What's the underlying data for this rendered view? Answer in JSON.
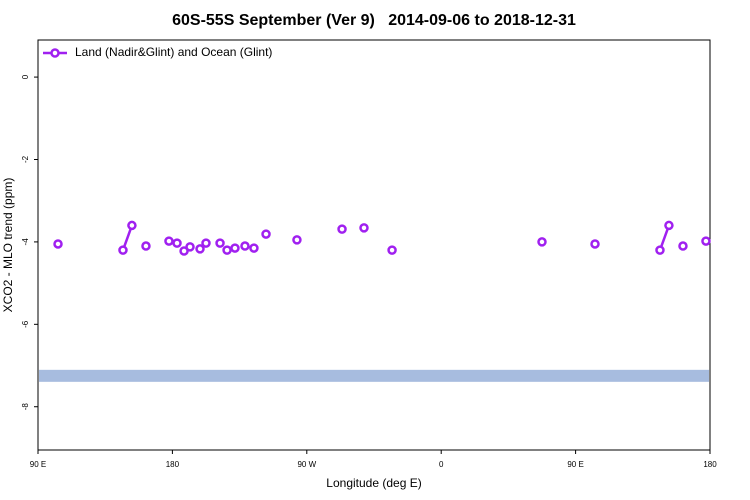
{
  "chart_data": {
    "type": "line",
    "title": "60S-55S September (Ver 9)   2014-09-06 to 2018-12-31",
    "x_label": "Longitude (deg E)",
    "y_label": "XCO2 - MLO trend (ppm)",
    "xlim": [
      90,
      540
    ],
    "ylim": [
      -9.05,
      0.9
    ],
    "xticks": [
      {
        "value": 90,
        "label": "90 E"
      },
      {
        "value": 180,
        "label": "180"
      },
      {
        "value": 270,
        "label": "90 W"
      },
      {
        "value": 360,
        "label": "0"
      },
      {
        "value": 450,
        "label": "90 E"
      },
      {
        "value": 540,
        "label": "180"
      }
    ],
    "yticks": [
      0,
      -2,
      -4,
      -6,
      -8
    ],
    "legend_position": "top-left",
    "band": {
      "y": -7.25,
      "color": "#a7bcdf"
    },
    "x": [
      103.4,
      null,
      146.9,
      152.9,
      null,
      162.3,
      null,
      177.7,
      null,
      183.1,
      null,
      187.8,
      null,
      191.8,
      null,
      198.5,
      null,
      202.5,
      null,
      211.9,
      null,
      216.6,
      null,
      221.9,
      null,
      228.6,
      null,
      234.6,
      null,
      242.7,
      null,
      263.4,
      null,
      293.6,
      null,
      308.3,
      null,
      327.1,
      null,
      427.5,
      null,
      463.0,
      null,
      506.5,
      512.5,
      null,
      521.9,
      null,
      537.3
    ],
    "series": [
      {
        "name": "Land (Nadir&Glint) and Ocean (Glint)",
        "color": "#a020f0",
        "values": [
          -4.05,
          null,
          -4.2,
          -3.6,
          null,
          -4.1,
          null,
          -3.98,
          null,
          -4.03,
          null,
          -4.22,
          null,
          -4.12,
          null,
          -4.17,
          null,
          -4.03,
          null,
          -4.03,
          null,
          -4.2,
          null,
          -4.15,
          null,
          -4.1,
          null,
          -4.15,
          null,
          -3.81,
          null,
          -3.95,
          null,
          -3.69,
          null,
          -3.66,
          null,
          -4.2,
          null,
          -4.0,
          null,
          -4.05,
          null,
          -4.2,
          -3.6,
          null,
          -4.1,
          null,
          -3.98
        ]
      }
    ]
  }
}
